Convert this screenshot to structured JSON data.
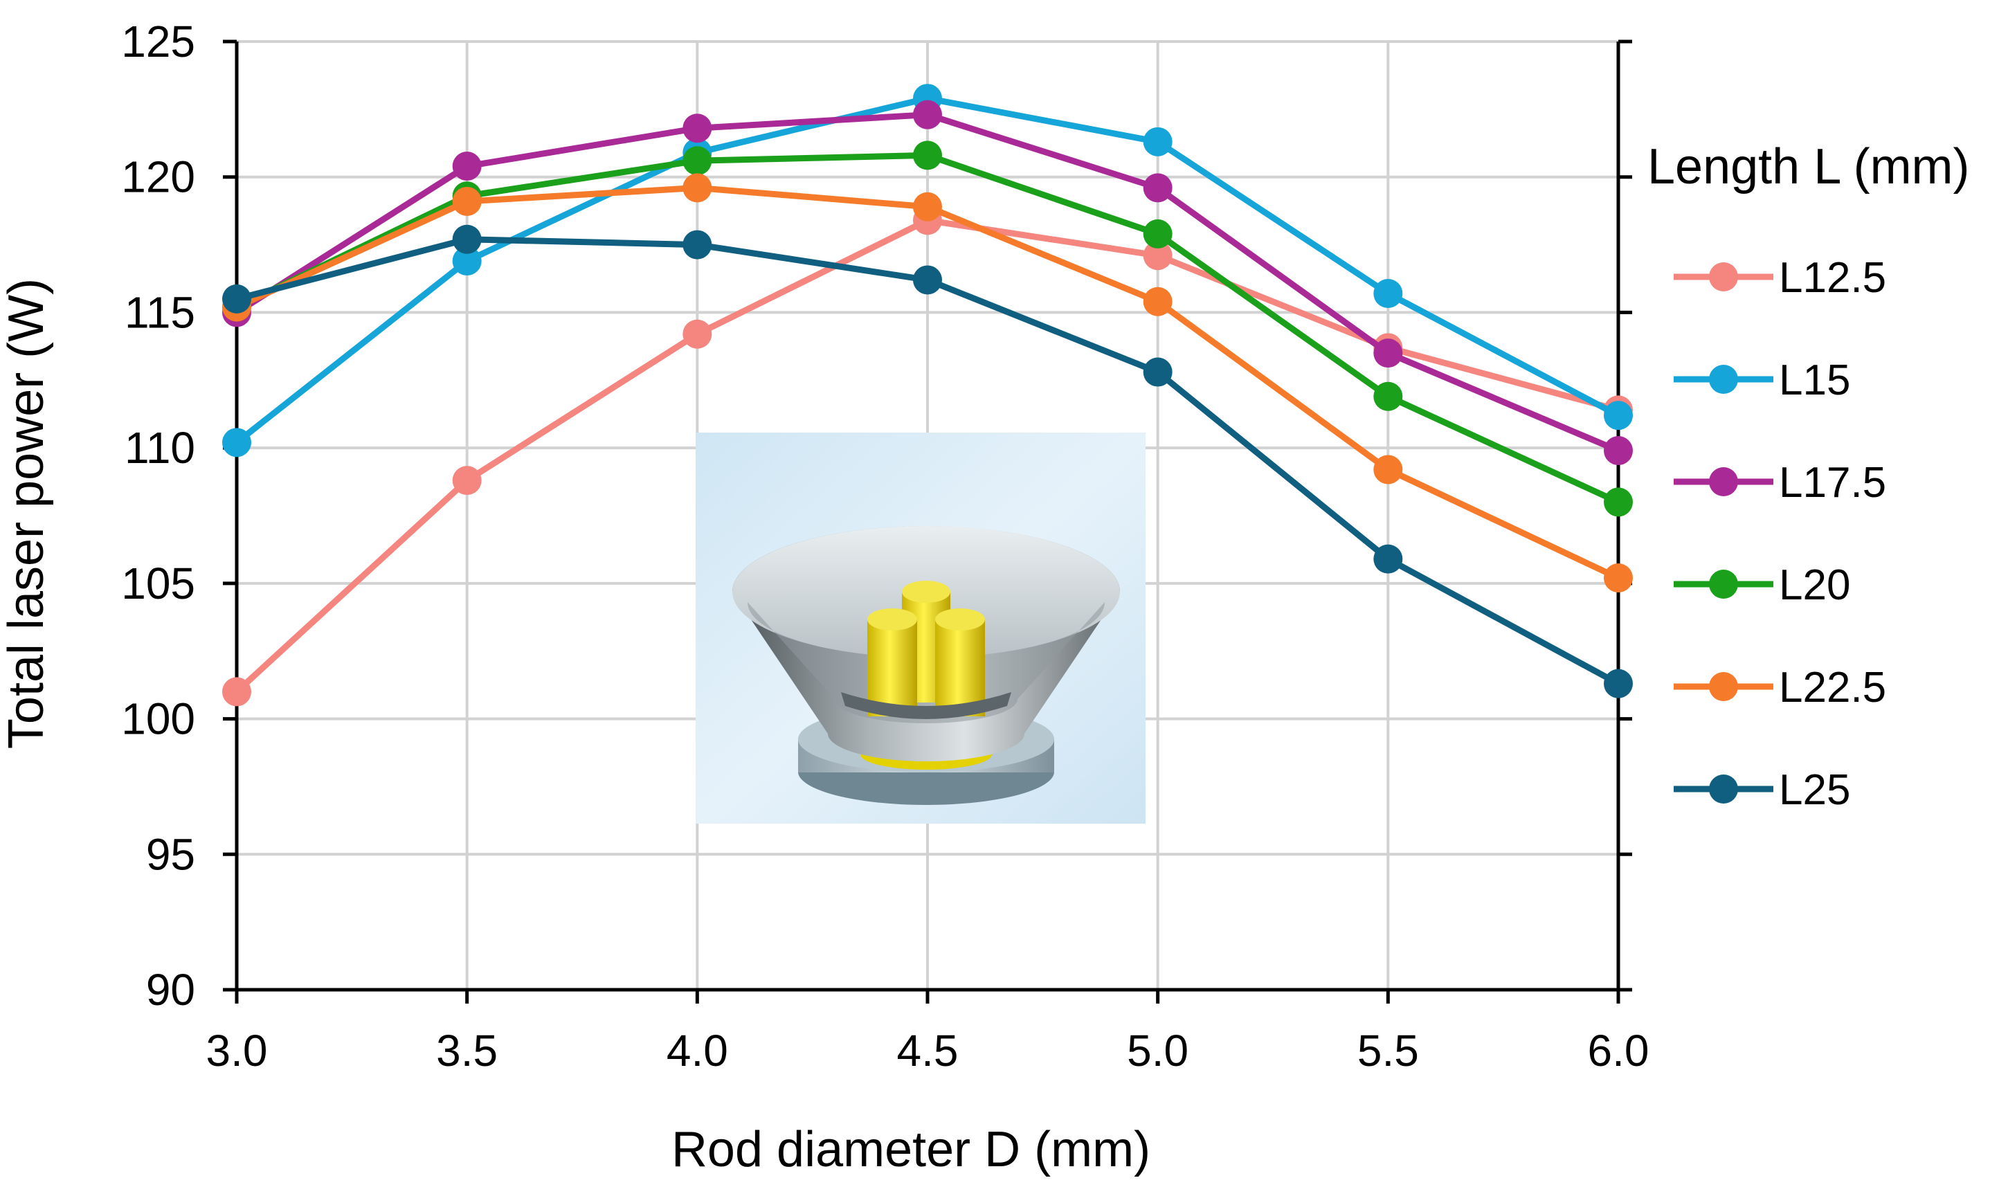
{
  "chart_data": {
    "type": "line",
    "title": "",
    "xlabel": "Rod diameter D (mm)",
    "ylabel": "Total laser power (W)",
    "x": [
      3.0,
      3.5,
      4.0,
      4.5,
      5.0,
      5.5,
      6.0
    ],
    "x_tick_labels": [
      "3.0",
      "3.5",
      "4.0",
      "4.5",
      "5.0",
      "5.5",
      "6.0"
    ],
    "xlim": [
      3.0,
      6.0
    ],
    "ylim": [
      90,
      125
    ],
    "y_ticks": [
      90,
      95,
      100,
      105,
      110,
      115,
      120,
      125
    ],
    "grid": true,
    "legend_title": "Length L (mm)",
    "legend_position": "right",
    "series": [
      {
        "name": "L12.5",
        "color": "#F4857F",
        "values": [
          101.0,
          108.8,
          114.2,
          118.4,
          117.1,
          113.7,
          111.4
        ]
      },
      {
        "name": "L15",
        "color": "#16A5D8",
        "values": [
          110.2,
          116.9,
          120.9,
          122.9,
          121.3,
          115.7,
          111.2
        ]
      },
      {
        "name": "L17.5",
        "color": "#A92A96",
        "values": [
          115.0,
          120.4,
          121.8,
          122.3,
          119.6,
          113.5,
          109.9
        ]
      },
      {
        "name": "L20",
        "color": "#1BA01B",
        "values": [
          115.2,
          119.3,
          120.6,
          120.8,
          117.9,
          111.9,
          108.0
        ]
      },
      {
        "name": "L22.5",
        "color": "#F57A2A",
        "values": [
          115.2,
          119.1,
          119.6,
          118.9,
          115.4,
          109.2,
          105.2
        ]
      },
      {
        "name": "L25",
        "color": "#105F80",
        "values": [
          115.5,
          117.7,
          117.5,
          116.2,
          112.8,
          105.9,
          101.3
        ]
      }
    ]
  }
}
